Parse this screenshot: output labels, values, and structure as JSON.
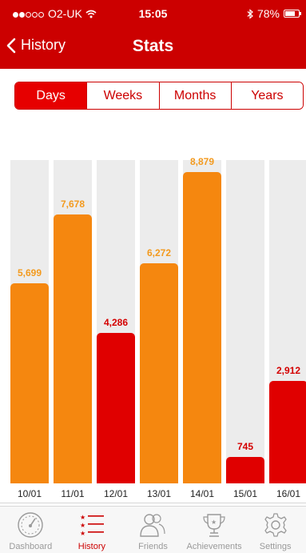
{
  "status_bar": {
    "carrier": "O2-UK",
    "time": "15:05",
    "battery": "78%",
    "battery_level": 0.78,
    "signal_bars": 2,
    "signal_total": 5
  },
  "nav": {
    "back_label": "History",
    "title": "Stats"
  },
  "segments": [
    {
      "label": "Days",
      "active": true
    },
    {
      "label": "Weeks",
      "active": false
    },
    {
      "label": "Months",
      "active": false
    },
    {
      "label": "Years",
      "active": false
    }
  ],
  "colors": {
    "header": "#cc0000",
    "orange_bar": "#f5870f",
    "orange_label": "#f39a1e",
    "red_bar": "#e00000",
    "red_label": "#d40000",
    "track": "#ececec",
    "tab_inactive": "#9a9a9a",
    "tab_active": "#cc0000"
  },
  "chart_data": {
    "type": "bar",
    "categories": [
      "10/01",
      "11/01",
      "12/01",
      "13/01",
      "14/01",
      "15/01",
      "16/01"
    ],
    "values": [
      5699,
      7678,
      4286,
      6272,
      8879,
      745,
      2912
    ],
    "value_labels": [
      "5,699",
      "7,678",
      "4,286",
      "6,272",
      "8,879",
      "745",
      "2,912"
    ],
    "bar_colors": [
      "orange",
      "orange",
      "red",
      "orange",
      "orange",
      "red",
      "red"
    ],
    "ylim": [
      0,
      10000
    ],
    "xlabel": "",
    "ylabel": ""
  },
  "tabs": [
    {
      "label": "Dashboard",
      "icon": "speedometer-icon",
      "active": false
    },
    {
      "label": "History",
      "icon": "list-icon",
      "active": true
    },
    {
      "label": "Friends",
      "icon": "friends-icon",
      "active": false
    },
    {
      "label": "Achievements",
      "icon": "trophy-icon",
      "active": false
    },
    {
      "label": "Settings",
      "icon": "gear-icon",
      "active": false
    }
  ]
}
